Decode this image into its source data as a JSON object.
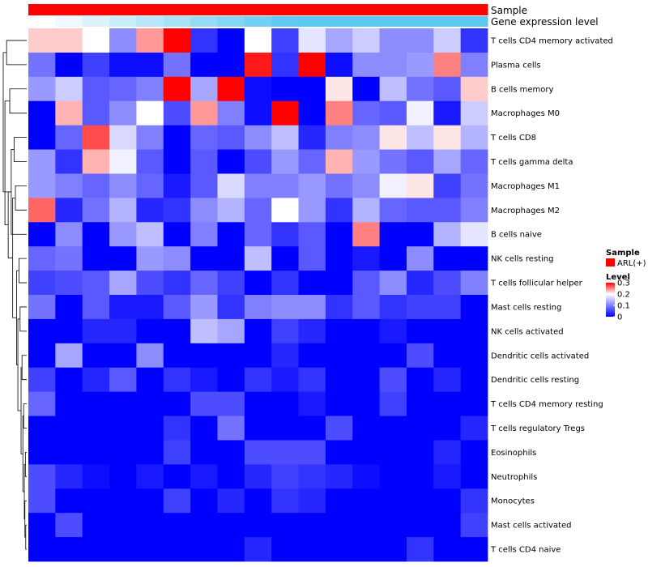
{
  "chart_data": {
    "type": "heatmap",
    "title": "",
    "annotations": [
      {
        "name": "Sample",
        "colors": [
          "#ff0000"
        ]
      },
      {
        "name": "Gene expression level",
        "colors": [
          "#ffffff",
          "#5bc8f0"
        ]
      }
    ],
    "rows": [
      "T cells CD4 memory activated",
      "Plasma cells",
      "B cells memory",
      "Macrophages M0",
      "T cells CD8",
      "T cells gamma delta",
      "Macrophages M1",
      "Macrophages M2",
      "B cells naive",
      "NK cells resting",
      "T cells follicular helper",
      "Mast cells resting",
      "NK cells activated",
      "Dendritic cells activated",
      "Dendritic cells resting",
      "T cells CD4 memory resting",
      "T cells regulatory  Tregs",
      "Eosinophils",
      "Neutrophils",
      "Monocytes",
      "Mast cells activated",
      "T cells CD4 naive"
    ],
    "values": [
      [
        0.22,
        0.22,
        0.2,
        0.11,
        0.24,
        0.3,
        0.04,
        0.0,
        0.2,
        0.05,
        0.18,
        0.13,
        0.16,
        0.11,
        0.11,
        0.16,
        0.04
      ],
      [
        0.09,
        0.0,
        0.05,
        0.01,
        0.01,
        0.09,
        0.0,
        0.0,
        0.29,
        0.04,
        0.3,
        0.01,
        0.11,
        0.11,
        0.12,
        0.25,
        0.1
      ],
      [
        0.12,
        0.16,
        0.07,
        0.08,
        0.1,
        0.3,
        0.13,
        0.3,
        0.01,
        0.0,
        0.0,
        0.21,
        0.0,
        0.15,
        0.09,
        0.07,
        0.22
      ],
      [
        0.0,
        0.23,
        0.07,
        0.11,
        0.2,
        0.06,
        0.24,
        0.1,
        0.01,
        0.3,
        0.0,
        0.25,
        0.08,
        0.07,
        0.19,
        0.02,
        0.16
      ],
      [
        0.0,
        0.08,
        0.27,
        0.17,
        0.1,
        0.0,
        0.08,
        0.07,
        0.11,
        0.15,
        0.03,
        0.1,
        0.11,
        0.21,
        0.15,
        0.21,
        0.14
      ],
      [
        0.12,
        0.04,
        0.23,
        0.19,
        0.07,
        0.0,
        0.07,
        0.0,
        0.06,
        0.12,
        0.08,
        0.23,
        0.12,
        0.09,
        0.07,
        0.13,
        0.08
      ],
      [
        0.12,
        0.1,
        0.08,
        0.11,
        0.08,
        0.02,
        0.07,
        0.17,
        0.1,
        0.1,
        0.12,
        0.09,
        0.11,
        0.19,
        0.21,
        0.05,
        0.09
      ],
      [
        0.26,
        0.03,
        0.09,
        0.14,
        0.03,
        0.04,
        0.11,
        0.14,
        0.08,
        0.2,
        0.12,
        0.04,
        0.14,
        0.08,
        0.07,
        0.07,
        0.1
      ],
      [
        0.0,
        0.11,
        0.0,
        0.12,
        0.15,
        0.0,
        0.1,
        0.0,
        0.08,
        0.04,
        0.07,
        0.0,
        0.25,
        0.0,
        0.0,
        0.14,
        0.18
      ],
      [
        0.08,
        0.09,
        0.0,
        0.0,
        0.12,
        0.11,
        0.0,
        0.0,
        0.15,
        0.0,
        0.07,
        0.0,
        0.02,
        0.0,
        0.11,
        0.0,
        0.0
      ],
      [
        0.05,
        0.06,
        0.07,
        0.13,
        0.06,
        0.04,
        0.08,
        0.05,
        0.0,
        0.04,
        0.0,
        0.0,
        0.07,
        0.11,
        0.03,
        0.06,
        0.1
      ],
      [
        0.09,
        0.0,
        0.07,
        0.02,
        0.02,
        0.07,
        0.12,
        0.04,
        0.1,
        0.11,
        0.11,
        0.04,
        0.07,
        0.04,
        0.05,
        0.05,
        0.0
      ],
      [
        0.0,
        0.0,
        0.03,
        0.03,
        0.0,
        0.0,
        0.15,
        0.13,
        0.0,
        0.05,
        0.03,
        0.0,
        0.0,
        0.02,
        0.0,
        0.0,
        0.0
      ],
      [
        0.0,
        0.13,
        0.0,
        0.0,
        0.11,
        0.0,
        0.0,
        0.0,
        0.0,
        0.03,
        0.0,
        0.0,
        0.0,
        0.0,
        0.06,
        0.0,
        0.0
      ],
      [
        0.05,
        0.0,
        0.03,
        0.07,
        0.0,
        0.04,
        0.02,
        0.0,
        0.04,
        0.02,
        0.04,
        0.0,
        0.0,
        0.06,
        0.0,
        0.03,
        0.0
      ],
      [
        0.08,
        0.0,
        0.0,
        0.0,
        0.0,
        0.0,
        0.06,
        0.06,
        0.0,
        0.0,
        0.02,
        0.0,
        0.0,
        0.05,
        0.0,
        0.0,
        0.0
      ],
      [
        0.0,
        0.0,
        0.0,
        0.0,
        0.0,
        0.04,
        0.0,
        0.09,
        0.0,
        0.0,
        0.0,
        0.06,
        0.0,
        0.0,
        0.0,
        0.0,
        0.03
      ],
      [
        0.0,
        0.0,
        0.0,
        0.0,
        0.0,
        0.05,
        0.0,
        0.0,
        0.06,
        0.06,
        0.06,
        0.0,
        0.0,
        0.0,
        0.0,
        0.03,
        0.0
      ],
      [
        0.06,
        0.03,
        0.01,
        0.0,
        0.02,
        0.0,
        0.02,
        0.0,
        0.03,
        0.05,
        0.04,
        0.03,
        0.01,
        0.0,
        0.0,
        0.02,
        0.0
      ],
      [
        0.06,
        0.0,
        0.0,
        0.0,
        0.0,
        0.05,
        0.0,
        0.03,
        0.0,
        0.04,
        0.03,
        0.0,
        0.0,
        0.0,
        0.0,
        0.0,
        0.04
      ],
      [
        0.0,
        0.06,
        0.0,
        0.0,
        0.0,
        0.0,
        0.0,
        0.0,
        0.0,
        0.0,
        0.0,
        0.0,
        0.0,
        0.0,
        0.0,
        0.0,
        0.05
      ],
      [
        0.0,
        0.0,
        0.0,
        0.0,
        0.0,
        0.0,
        0.0,
        0.0,
        0.03,
        0.0,
        0.0,
        0.0,
        0.0,
        0.0,
        0.04,
        0.0,
        0.0
      ]
    ],
    "color_scale": {
      "min": 0,
      "mid": 0.2,
      "max": 0.3,
      "low_color": "#0000ff",
      "mid_color": "#ffffff",
      "high_color": "#ff0000"
    },
    "legend": {
      "sample_title": "Sample",
      "sample_entry": "ARL(+)",
      "sample_color": "#ff0000",
      "level_title": "Level",
      "level_ticks": [
        "0.3",
        "0.2",
        "0.1",
        "0"
      ],
      "level_tick_values": [
        0.3,
        0.2,
        0.1,
        0
      ],
      "placement": "right"
    },
    "dendrogram": {
      "side": "left",
      "merge_order": [
        [
          20,
          21
        ],
        [
          17,
          18
        ],
        [
          19,
          "m1"
        ],
        [
          "m2",
          "m3"
        ],
        [
          15,
          16
        ],
        [
          "m5",
          "m4"
        ],
        [
          13,
          14
        ],
        [
          "m7",
          "m6"
        ],
        [
          11,
          12
        ],
        [
          9,
          10
        ],
        [
          "m9",
          "m8"
        ],
        [
          "m10",
          "m11"
        ],
        [
          6,
          7
        ],
        [
          4,
          5
        ],
        [
          "m13",
          "m12"
        ],
        [
          8,
          "m14"
        ],
        [
          2,
          3
        ],
        [
          "m16",
          "m15"
        ],
        [
          0,
          1
        ],
        [
          "m18",
          "m17"
        ],
        [
          "m19",
          "m16"
        ]
      ]
    }
  }
}
